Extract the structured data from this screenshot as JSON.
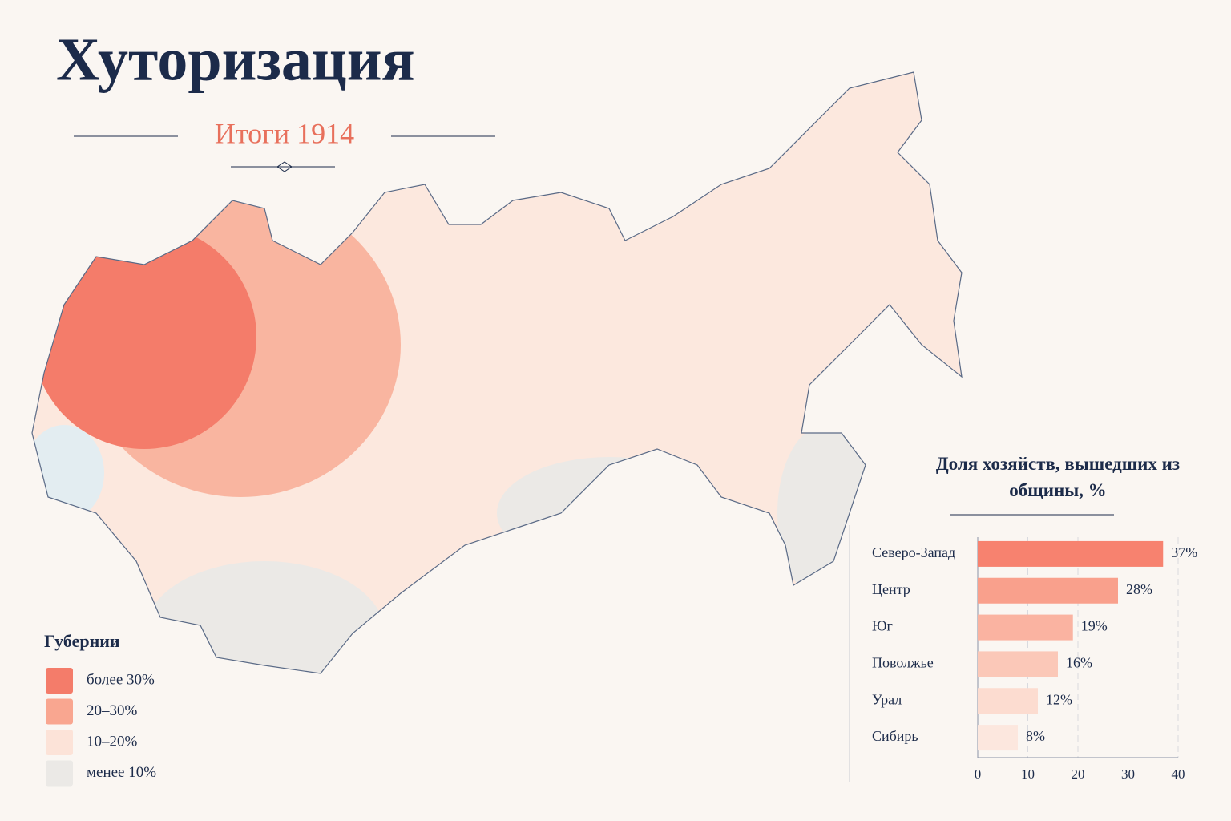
{
  "header": {
    "title": "Хуторизация",
    "subtitle": "Итоги 1914"
  },
  "legend": {
    "title": "Губернии",
    "items": [
      {
        "label": "более 30%",
        "color": "#f47c6a"
      },
      {
        "label": "20–30%",
        "color": "#f9a690"
      },
      {
        "label": "10–20%",
        "color": "#fce3d8"
      },
      {
        "label": "менее 10%",
        "color": "#ebe9e6"
      }
    ]
  },
  "chart_data": {
    "type": "bar",
    "orientation": "horizontal",
    "title": "Доля хозяйств, вышедших из общины, %",
    "categories": [
      "Северо-Запад",
      "Центр",
      "Юг",
      "Поволжье",
      "Урал",
      "Сибирь"
    ],
    "values": [
      37,
      28,
      19,
      16,
      12,
      8
    ],
    "value_labels": [
      "37%",
      "28%",
      "19%",
      "16%",
      "12%",
      "8%"
    ],
    "colors": [
      "#f7826f",
      "#f9a08c",
      "#fab3a1",
      "#fbc8b8",
      "#fcdcd0",
      "#fce7de"
    ],
    "xlim": [
      0,
      40
    ],
    "xticks": [
      0,
      10,
      20,
      30,
      40
    ],
    "grid": true
  }
}
